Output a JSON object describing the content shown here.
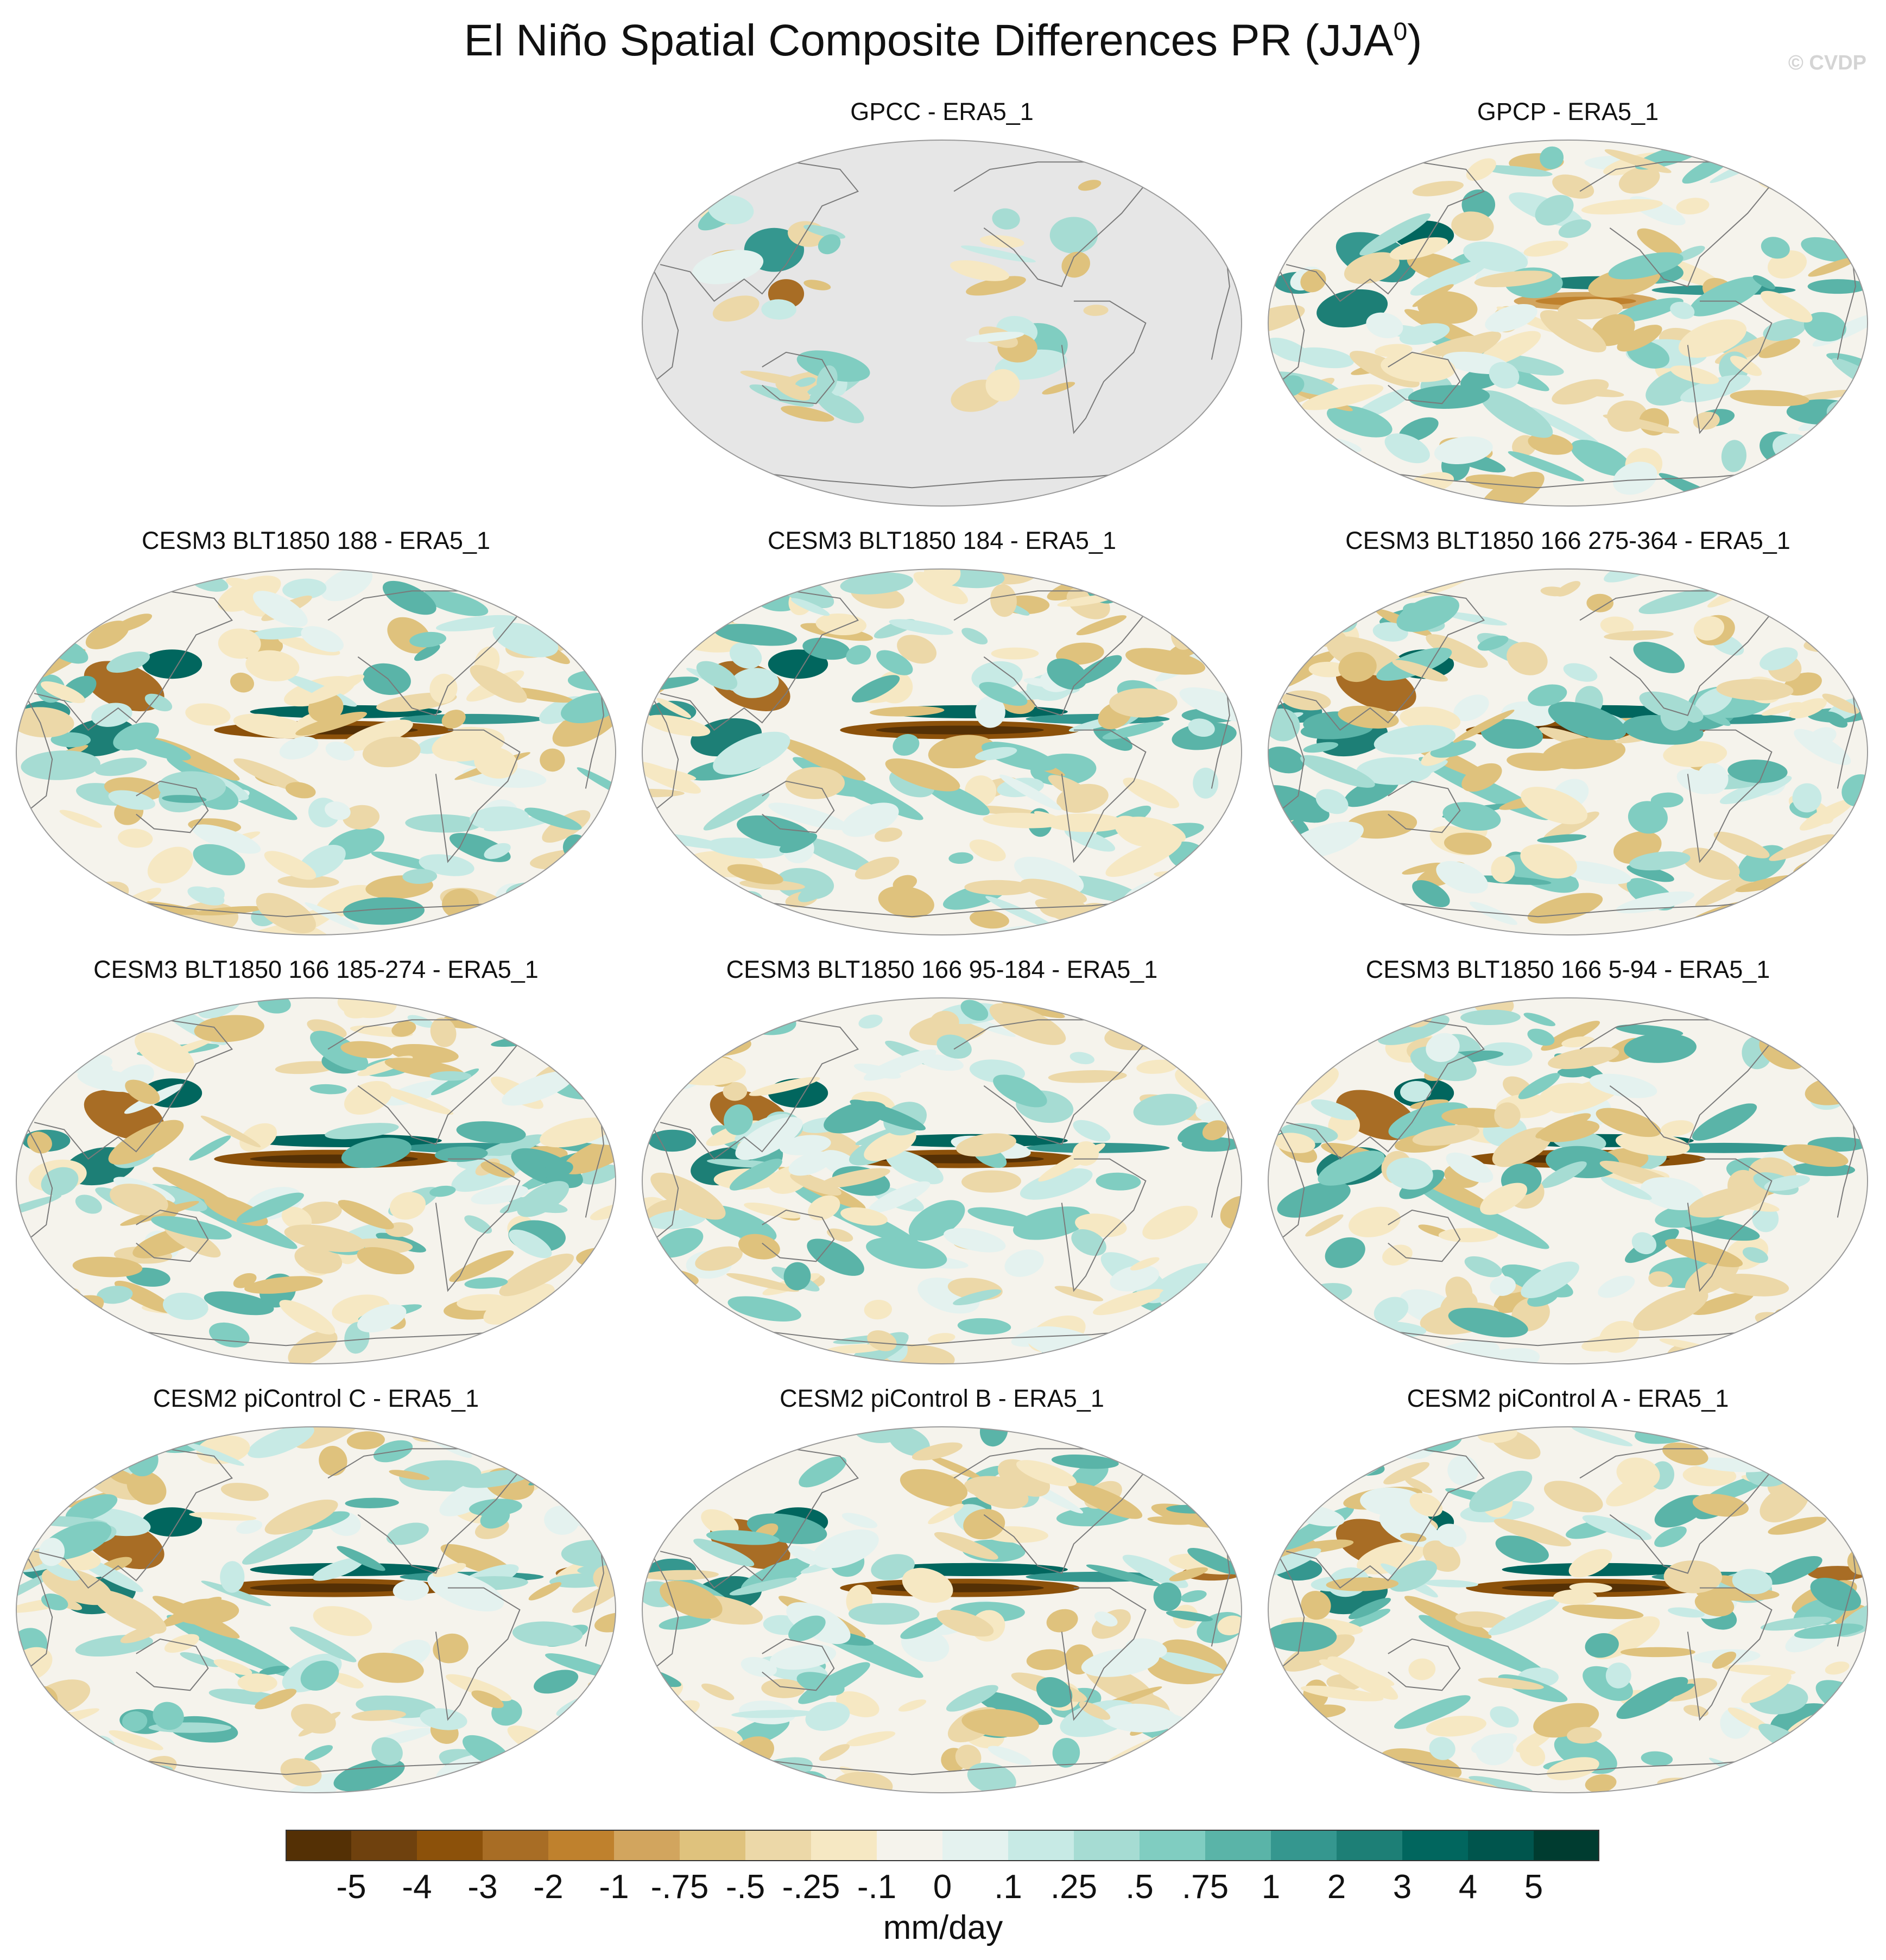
{
  "figure": {
    "title_main": "El Niño Spatial Composite Differences PR (JJA",
    "title_superscript": "0",
    "title_close": ")",
    "watermark": "© CVDP"
  },
  "panels": [
    {
      "title": "GPCC - ERA5_1",
      "coverage": "land-only",
      "pattern": "gpcc"
    },
    {
      "title": "GPCP - ERA5_1",
      "coverage": "global",
      "pattern": "gpcp"
    },
    {
      "title": "CESM3 BLT1850 188 - ERA5_1",
      "coverage": "global",
      "pattern": "model"
    },
    {
      "title": "CESM3 BLT1850 184 - ERA5_1",
      "coverage": "global",
      "pattern": "model"
    },
    {
      "title": "CESM3 BLT1850 166 275-364 - ERA5_1",
      "coverage": "global",
      "pattern": "model"
    },
    {
      "title": "CESM3 BLT1850 166 185-274 - ERA5_1",
      "coverage": "global",
      "pattern": "model"
    },
    {
      "title": "CESM3 BLT1850 166 95-184 - ERA5_1",
      "coverage": "global",
      "pattern": "model"
    },
    {
      "title": "CESM3 BLT1850 166 5-94 - ERA5_1",
      "coverage": "global",
      "pattern": "model"
    },
    {
      "title": "CESM2 piControl C - ERA5_1",
      "coverage": "global",
      "pattern": "model2"
    },
    {
      "title": "CESM2 piControl B - ERA5_1",
      "coverage": "global",
      "pattern": "model2"
    },
    {
      "title": "CESM2 piControl A - ERA5_1",
      "coverage": "global",
      "pattern": "model2"
    }
  ],
  "colorbar": {
    "units": "mm/day",
    "ticks": [
      "-5",
      "-4",
      "-3",
      "-2",
      "-1",
      "-.75",
      "-.5",
      "-.25",
      "-.1",
      "0",
      ".1",
      ".25",
      ".5",
      ".75",
      "1",
      "2",
      "3",
      "4",
      "5"
    ],
    "colors": [
      "#543005",
      "#6f410e",
      "#8c510a",
      "#a86d25",
      "#bf812d",
      "#d2a55e",
      "#dfc27d",
      "#ecd8a8",
      "#f6e8c3",
      "#f5f3ec",
      "#e4f2ef",
      "#c7eae5",
      "#a6dcd3",
      "#80cdc1",
      "#5ab4a8",
      "#35978f",
      "#1d7f76",
      "#01665e",
      "#00554d",
      "#003c30"
    ]
  }
}
